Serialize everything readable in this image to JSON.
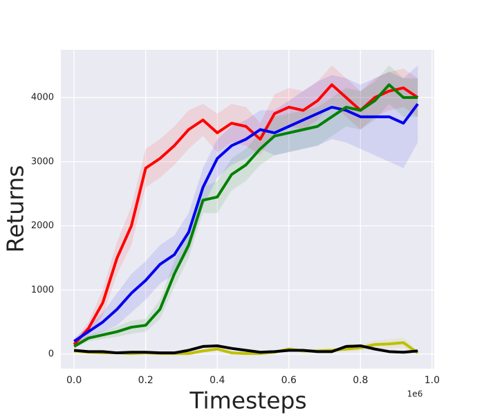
{
  "chart_data": {
    "type": "line",
    "x_label": "Timesteps",
    "y_label": "Returns",
    "x_offset_label": "1e6",
    "x": [
      0,
      0.04,
      0.08,
      0.12,
      0.16,
      0.2,
      0.24,
      0.28,
      0.32,
      0.36,
      0.4,
      0.44,
      0.48,
      0.52,
      0.56,
      0.6,
      0.64,
      0.68,
      0.72,
      0.76,
      0.8,
      0.84,
      0.88,
      0.92,
      0.96
    ],
    "series": [
      {
        "color": "#ff0000",
        "values": [
          150,
          400,
          800,
          1500,
          2000,
          2900,
          3050,
          3250,
          3500,
          3650,
          3450,
          3600,
          3550,
          3350,
          3750,
          3850,
          3800,
          3950,
          4200,
          4000,
          3800,
          4000,
          4100,
          4150,
          4000
        ],
        "std": [
          50,
          100,
          200,
          250,
          300,
          300,
          300,
          300,
          300,
          250,
          300,
          300,
          300,
          250,
          300,
          300,
          300,
          300,
          300,
          300,
          300,
          300,
          300,
          300,
          300
        ]
      },
      {
        "color": "#0000ee",
        "values": [
          200,
          350,
          500,
          700,
          950,
          1150,
          1400,
          1550,
          1900,
          2600,
          3050,
          3250,
          3350,
          3500,
          3450,
          3550,
          3650,
          3750,
          3850,
          3800,
          3700,
          3700,
          3700,
          3600,
          3900
        ],
        "std": [
          50,
          80,
          150,
          250,
          300,
          300,
          300,
          300,
          300,
          300,
          300,
          300,
          300,
          300,
          350,
          400,
          450,
          500,
          500,
          500,
          500,
          600,
          700,
          700,
          600
        ]
      },
      {
        "color": "#008000",
        "values": [
          120,
          250,
          300,
          350,
          420,
          450,
          700,
          1250,
          1700,
          2400,
          2450,
          2800,
          2950,
          3200,
          3400,
          3450,
          3500,
          3550,
          3700,
          3850,
          3800,
          3950,
          4200,
          4000,
          4000
        ],
        "std": [
          30,
          50,
          60,
          80,
          100,
          100,
          150,
          200,
          200,
          200,
          250,
          250,
          250,
          250,
          300,
          300,
          300,
          300,
          300,
          300,
          300,
          300,
          300,
          300,
          300
        ]
      },
      {
        "color": "#bfbf00",
        "values": [
          50,
          30,
          20,
          20,
          10,
          20,
          10,
          10,
          10,
          50,
          80,
          20,
          10,
          10,
          30,
          80,
          50,
          50,
          60,
          80,
          100,
          150,
          160,
          180,
          20
        ],
        "std": [
          20,
          20,
          20,
          20,
          20,
          20,
          20,
          20,
          20,
          20,
          30,
          20,
          20,
          20,
          20,
          30,
          30,
          30,
          30,
          40,
          50,
          60,
          70,
          80,
          30
        ]
      },
      {
        "color": "#000000",
        "values": [
          60,
          40,
          40,
          20,
          30,
          30,
          20,
          20,
          60,
          120,
          130,
          90,
          60,
          30,
          40,
          60,
          60,
          40,
          40,
          120,
          130,
          80,
          40,
          30,
          50
        ],
        "std": [
          20,
          20,
          20,
          20,
          20,
          20,
          20,
          20,
          20,
          20,
          20,
          20,
          20,
          20,
          20,
          20,
          20,
          20,
          20,
          20,
          20,
          20,
          20,
          20,
          20
        ]
      }
    ],
    "xlim": [
      -0.037,
      1.006
    ],
    "ylim": [
      -226,
      4744
    ],
    "xticks": [
      {
        "value": 0,
        "label": "0.0"
      },
      {
        "value": 0.2,
        "label": "0.2"
      },
      {
        "value": 0.4,
        "label": "0.4"
      },
      {
        "value": 0.6,
        "label": "0.6"
      },
      {
        "value": 0.8,
        "label": "0.8"
      },
      {
        "value": 1,
        "label": "1.0"
      }
    ],
    "yticks": [
      0,
      1000,
      2000,
      3000,
      4000
    ],
    "grid": true,
    "background": "#eaeaf2"
  }
}
